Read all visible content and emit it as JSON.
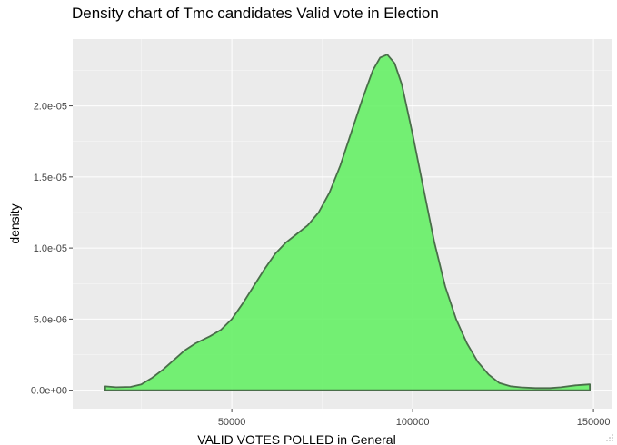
{
  "chart_data": {
    "type": "area",
    "title": "Density chart of Tmc candidates Valid vote in Election",
    "xlabel": "VALID VOTES POLLED in General",
    "ylabel": "density",
    "xlim": [
      6000,
      155000
    ],
    "ylim": [
      -1.3e-06,
      2.47e-05
    ],
    "x_ticks": [
      50000,
      100000,
      150000
    ],
    "x_tick_labels": [
      "50000",
      "100000",
      "150000"
    ],
    "y_ticks": [
      0,
      5e-06,
      1e-05,
      1.5e-05,
      2e-05
    ],
    "y_tick_labels": [
      "0.0e+00",
      "5.0e-06",
      "1.0e-05",
      "1.5e-05",
      "2.0e-05"
    ],
    "grid": true,
    "legend": "none",
    "series": [
      {
        "x": [
          15000,
          18000,
          22000,
          25000,
          28000,
          31000,
          34000,
          37000,
          40000,
          44000,
          47000,
          50000,
          53000,
          56000,
          59000,
          62000,
          65000,
          68000,
          71000,
          74000,
          77000,
          80000,
          83000,
          86000,
          89000,
          91000,
          93000,
          95000,
          97000,
          100000,
          103000,
          106000,
          109000,
          112000,
          115000,
          118000,
          121000,
          124000,
          127000,
          130000,
          134000,
          138000,
          141000,
          145000,
          149000
        ],
        "y": [
          2.7e-07,
          2.1e-07,
          2.3e-07,
          4.1e-07,
          8.8e-07,
          1.46e-06,
          2.13e-06,
          2.81e-06,
          3.3e-06,
          3.8e-06,
          4.25e-06,
          5e-06,
          6.1e-06,
          7.3e-06,
          8.5e-06,
          9.6e-06,
          1.04e-05,
          1.1e-05,
          1.16e-05,
          1.25e-05,
          1.39e-05,
          1.58e-05,
          1.81e-05,
          2.04e-05,
          2.25e-05,
          2.34e-05,
          2.36e-05,
          2.3e-05,
          2.15e-05,
          1.8e-05,
          1.42e-05,
          1.04e-05,
          7.3e-06,
          5e-06,
          3.3e-06,
          2e-06,
          1.1e-06,
          5e-07,
          2.8e-07,
          2e-07,
          1.5e-07,
          1.5e-07,
          2.1e-07,
          3.4e-07,
          4.1e-07
        ]
      }
    ],
    "colors": {
      "fill": "#66f066",
      "line": "#4a6e4a",
      "panel": "#ebebeb",
      "grid": "#ffffff"
    }
  }
}
